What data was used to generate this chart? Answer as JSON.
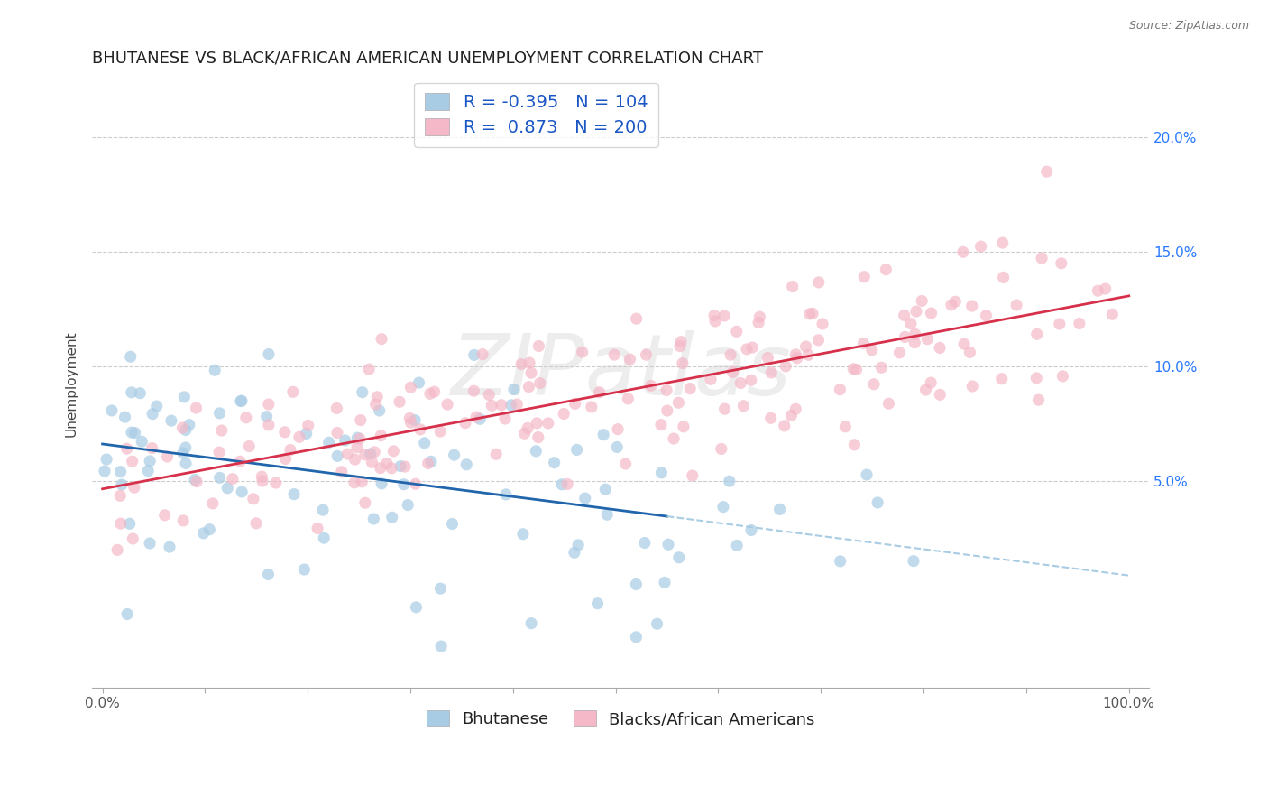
{
  "title": "BHUTANESE VS BLACK/AFRICAN AMERICAN UNEMPLOYMENT CORRELATION CHART",
  "source_text": "Source: ZipAtlas.com",
  "ylabel": "Unemployment",
  "watermark": "ZIPatlas",
  "legend_blue_r": "-0.395",
  "legend_blue_n": "104",
  "legend_pink_r": "0.873",
  "legend_pink_n": "200",
  "legend_label_blue": "Bhutanese",
  "legend_label_pink": "Blacks/African Americans",
  "blue_color": "#a8cce4",
  "pink_color": "#f4b8c8",
  "blue_line_solid_color": "#2166ac",
  "pink_line_color": "#d6304a",
  "blue_dashed_color": "#a8cce4",
  "title_fontsize": 13,
  "axis_label_fontsize": 11,
  "tick_fontsize": 11,
  "legend_fontsize": 13,
  "marker_size": 90,
  "marker_alpha": 0.7
}
